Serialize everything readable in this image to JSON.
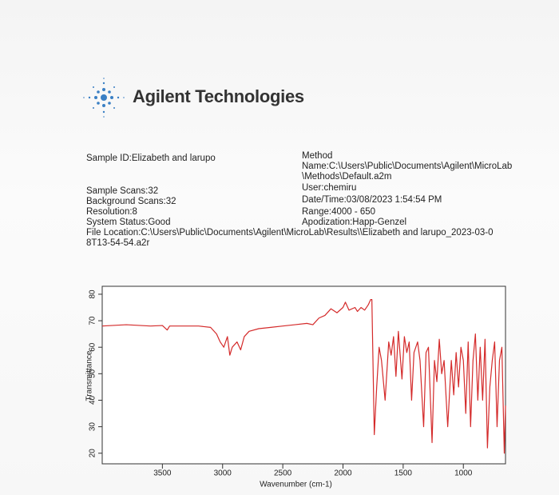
{
  "header": {
    "title": "Agilent Technologies"
  },
  "info": {
    "sample_id": "Sample ID:Elizabeth and larupo",
    "sample_scans": "Sample Scans:32",
    "background_scans": "Background Scans:32",
    "resolution": "Resolution:8",
    "system_status": "System Status:Good",
    "file_location": "File Location:C:\\Users\\Public\\Documents\\Agilent\\MicroLab\\Results\\\\Elizabeth and larupo_2023-03-08T13-54-54.a2r",
    "method": "Method",
    "method_name": "Name:C:\\Users\\Public\\Documents\\Agilent\\MicroLab\\Methods\\Default.a2m",
    "user": "User:chemiru",
    "date_time": "Date/Time:03/08/2023 1:54:54 PM",
    "range": "Range:4000 - 650",
    "apodization": "Apodization:Happ-Genzel"
  },
  "chart_data": {
    "type": "line",
    "x_label": "Wavenumber (cm-1)",
    "y_label": "Transmittance",
    "color": "#d42a2a",
    "xlim": [
      4000,
      650
    ],
    "ylim": [
      16,
      83
    ],
    "xticks": [
      3500,
      3000,
      2500,
      2000,
      1500,
      1000
    ],
    "yticks": [
      20,
      30,
      40,
      50,
      60,
      70,
      80
    ],
    "x": [
      4000,
      3800,
      3600,
      3500,
      3460,
      3440,
      3200,
      3100,
      3050,
      3020,
      2990,
      2960,
      2940,
      2920,
      2880,
      2850,
      2820,
      2780,
      2700,
      2600,
      2500,
      2400,
      2300,
      2250,
      2200,
      2150,
      2100,
      2050,
      2000,
      1980,
      1950,
      1900,
      1880,
      1850,
      1820,
      1790,
      1770,
      1760,
      1740,
      1720,
      1700,
      1680,
      1650,
      1620,
      1600,
      1580,
      1560,
      1540,
      1510,
      1490,
      1470,
      1450,
      1430,
      1410,
      1380,
      1360,
      1330,
      1310,
      1290,
      1260,
      1240,
      1220,
      1200,
      1180,
      1160,
      1130,
      1100,
      1080,
      1060,
      1040,
      1020,
      1000,
      980,
      960,
      940,
      920,
      900,
      880,
      860,
      840,
      820,
      800,
      780,
      760,
      740,
      720,
      700,
      680,
      660,
      650
    ],
    "values": [
      68,
      68.5,
      68,
      68.2,
      66.5,
      68,
      68,
      67.5,
      65,
      62,
      60,
      64,
      57,
      60,
      62,
      59,
      64,
      66,
      67,
      67.5,
      68,
      68.5,
      69,
      68.5,
      71,
      72,
      74.5,
      73,
      75,
      77,
      74,
      75,
      73.5,
      75,
      74,
      76,
      78,
      78,
      27,
      45,
      60,
      55,
      40,
      62,
      57,
      64,
      49,
      66,
      48,
      64,
      58,
      62,
      40,
      58,
      62,
      55,
      30,
      58,
      60,
      24,
      55,
      47,
      63,
      50,
      55,
      30,
      55,
      42,
      58,
      45,
      60,
      55,
      35,
      62,
      30,
      55,
      65,
      40,
      60,
      40,
      63,
      22,
      45,
      55,
      62,
      30,
      55,
      60,
      20,
      38
    ]
  }
}
